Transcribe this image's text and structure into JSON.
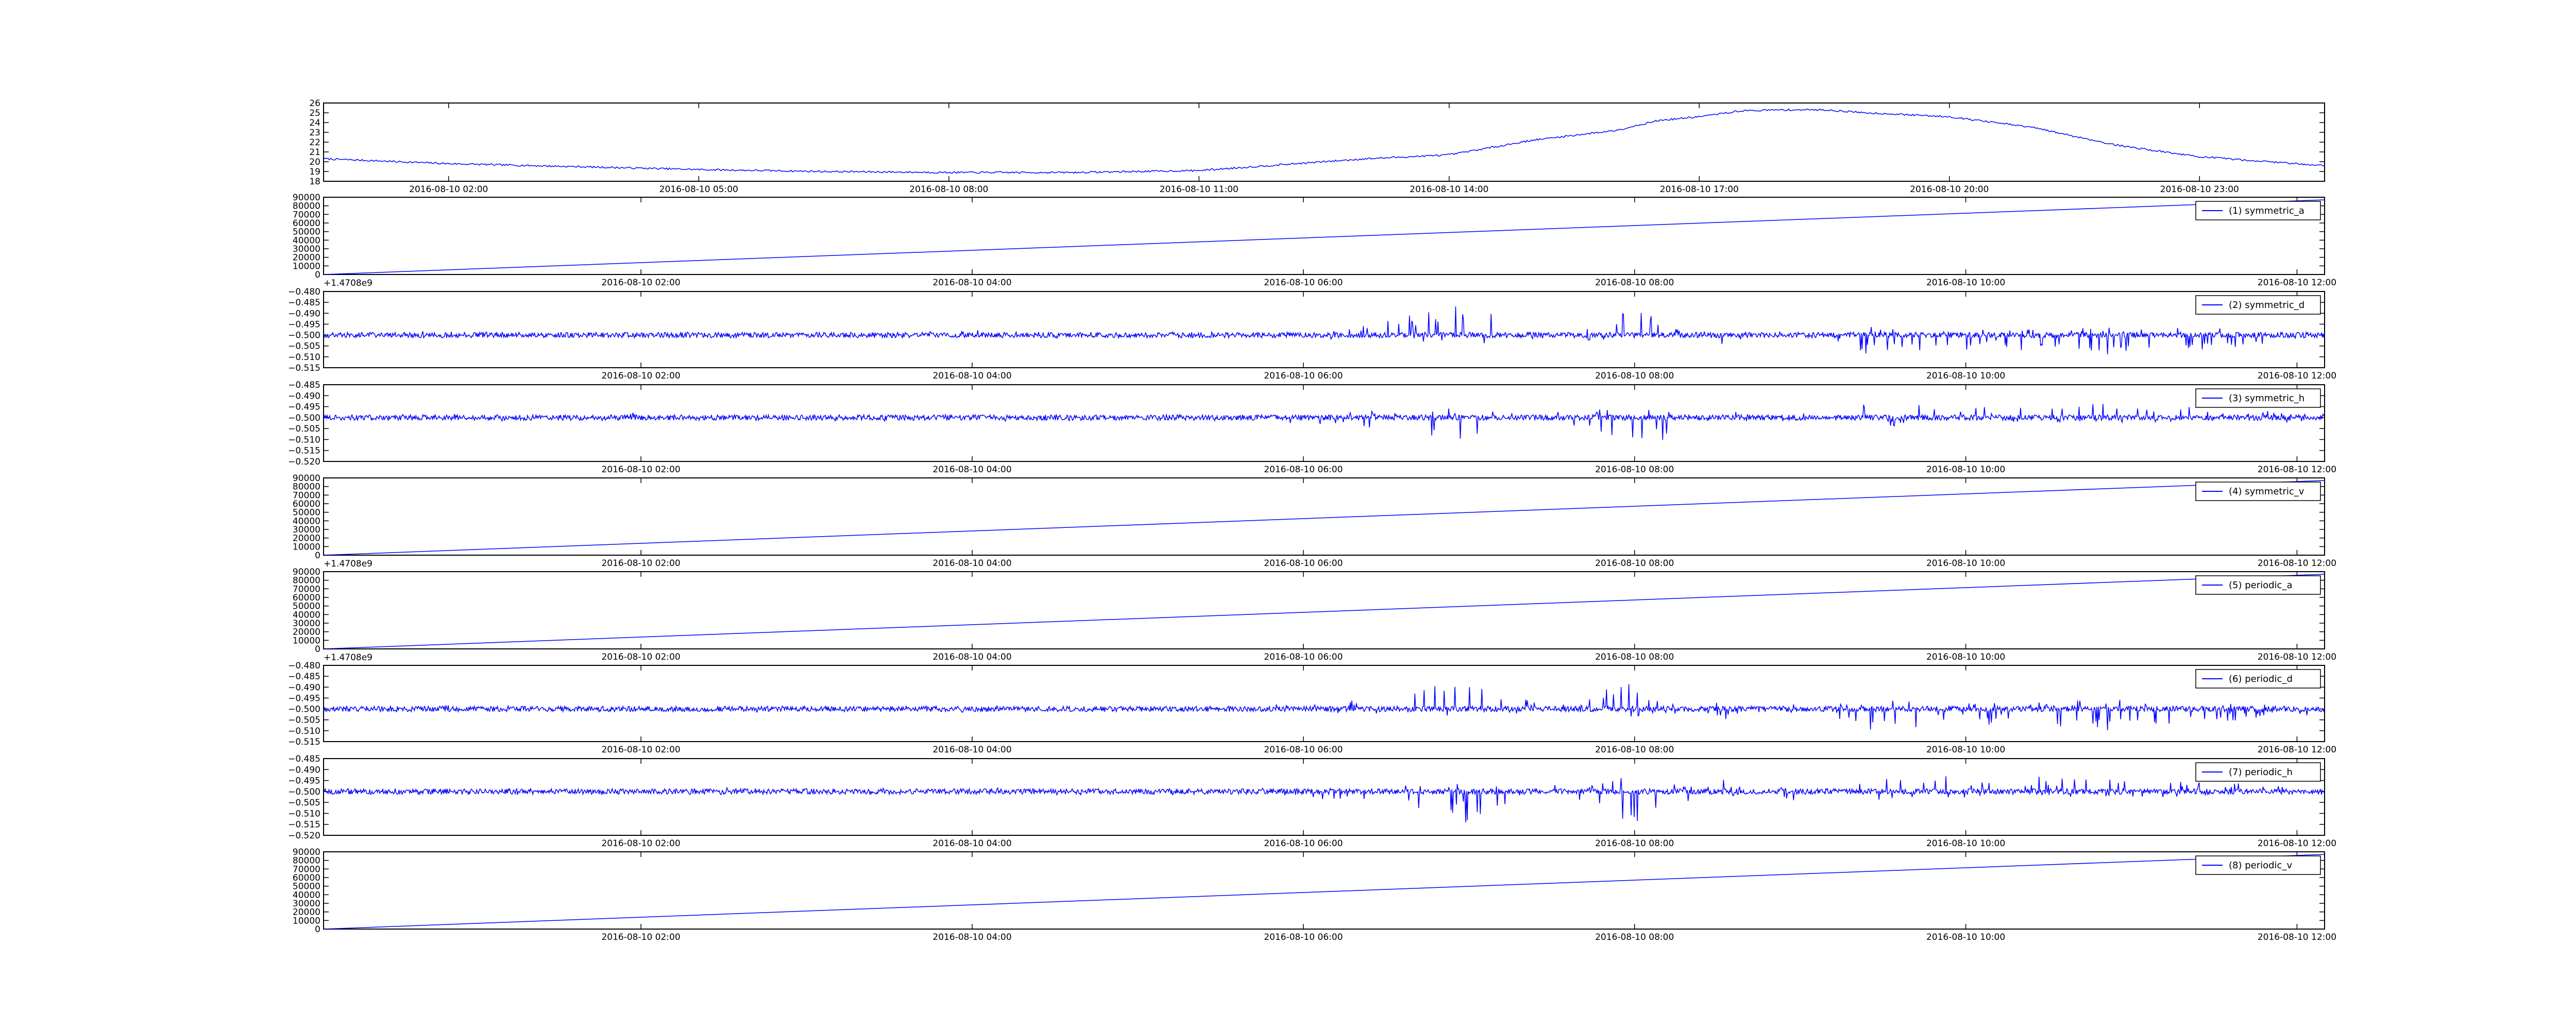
{
  "colors": {
    "line": "#0000ff",
    "axis": "#000000",
    "background": "#ffffff"
  },
  "chart_data": [
    {
      "type": "line",
      "title": "",
      "xlabel": "",
      "ylabel": "",
      "grid": false,
      "legend": null,
      "x_range": [
        "2016-08-10 00:30",
        "2016-08-11 00:30"
      ],
      "ylim": [
        18,
        26
      ],
      "y_ticks": [
        "18",
        "19",
        "20",
        "21",
        "22",
        "23",
        "24",
        "25",
        "26"
      ],
      "x_tick_labels": [
        "2016-08-10 02:00",
        "2016-08-10 05:00",
        "2016-08-10 08:00",
        "2016-08-10 11:00",
        "2016-08-10 14:00",
        "2016-08-10 17:00",
        "2016-08-10 20:00",
        "2016-08-10 23:00"
      ],
      "series": [
        {
          "x": [
            "2016-08-10 00:30",
            "2016-08-10 02:00",
            "2016-08-10 03:30",
            "2016-08-10 05:00",
            "2016-08-10 06:30",
            "2016-08-10 08:00",
            "2016-08-10 09:30",
            "2016-08-10 11:00",
            "2016-08-10 12:00",
            "2016-08-10 13:00",
            "2016-08-10 14:00",
            "2016-08-10 15:00",
            "2016-08-10 16:00",
            "2016-08-10 16:30",
            "2016-08-10 17:00",
            "2016-08-10 17:30",
            "2016-08-10 18:00",
            "2016-08-10 18:30",
            "2016-08-10 19:00",
            "2016-08-10 20:00",
            "2016-08-10 21:00",
            "2016-08-10 22:00",
            "2016-08-10 23:00",
            "2016-08-11 00:00",
            "2016-08-11 00:30"
          ],
          "values": [
            20.3,
            19.8,
            19.5,
            19.2,
            19.0,
            18.9,
            18.9,
            19.1,
            19.7,
            20.3,
            20.7,
            22.2,
            23.2,
            24.2,
            24.6,
            25.2,
            25.3,
            25.3,
            25.0,
            24.6,
            23.5,
            21.7,
            20.5,
            19.9,
            19.6
          ]
        }
      ]
    },
    {
      "type": "line",
      "ylim": [
        0,
        90000
      ],
      "y_ticks": [
        "0",
        "10000",
        "20000",
        "30000",
        "40000",
        "50000",
        "60000",
        "70000",
        "80000",
        "90000"
      ],
      "offset_label": "+1.4708e9",
      "x_range": [
        "2016-08-10 00:05",
        "2016-08-10 12:10"
      ],
      "x_tick_labels": [
        "2016-08-10 02:00",
        "2016-08-10 04:00",
        "2016-08-10 06:00",
        "2016-08-10 08:00",
        "2016-08-10 10:00",
        "2016-08-10 12:00"
      ],
      "legend": "top-right",
      "series": [
        {
          "name": "(1) symmetric_a",
          "x": [
            "2016-08-10 00:05",
            "2016-08-10 12:10"
          ],
          "values": [
            0,
            87000
          ]
        }
      ]
    },
    {
      "type": "line",
      "ylim": [
        -0.515,
        -0.48
      ],
      "y_ticks": [
        "−0.515",
        "−0.510",
        "−0.505",
        "−0.500",
        "−0.495",
        "−0.490",
        "−0.485",
        "−0.480"
      ],
      "x_range": [
        "2016-08-10 00:05",
        "2016-08-10 12:10"
      ],
      "x_tick_labels": [
        "2016-08-10 02:00",
        "2016-08-10 04:00",
        "2016-08-10 06:00",
        "2016-08-10 08:00",
        "2016-08-10 10:00",
        "2016-08-10 12:00"
      ],
      "legend": "top-right",
      "series": [
        {
          "name": "(2) symmetric_d",
          "x": [
            "2016-08-10 00:05",
            "2016-08-10 01:00",
            "2016-08-10 02:00",
            "2016-08-10 03:00",
            "2016-08-10 04:00",
            "2016-08-10 05:00",
            "2016-08-10 06:00",
            "2016-08-10 06:30",
            "2016-08-10 07:00",
            "2016-08-10 07:30",
            "2016-08-10 08:00",
            "2016-08-10 08:30",
            "2016-08-10 09:00",
            "2016-08-10 09:30",
            "2016-08-10 10:00",
            "2016-08-10 11:00",
            "2016-08-10 12:10"
          ],
          "values": [
            -0.5,
            -0.499,
            -0.501,
            -0.5,
            -0.499,
            -0.5,
            -0.499,
            -0.496,
            -0.489,
            -0.5,
            -0.49,
            -0.504,
            -0.498,
            -0.508,
            -0.505,
            -0.507,
            -0.501
          ]
        }
      ]
    },
    {
      "type": "line",
      "ylim": [
        -0.52,
        -0.485
      ],
      "y_ticks": [
        "−0.520",
        "−0.515",
        "−0.510",
        "−0.505",
        "−0.500",
        "−0.495",
        "−0.490",
        "−0.485"
      ],
      "x_range": [
        "2016-08-10 00:05",
        "2016-08-10 12:10"
      ],
      "x_tick_labels": [
        "2016-08-10 02:00",
        "2016-08-10 04:00",
        "2016-08-10 06:00",
        "2016-08-10 08:00",
        "2016-08-10 10:00",
        "2016-08-10 12:00"
      ],
      "legend": "top-right",
      "series": [
        {
          "name": "(3) symmetric_h",
          "x": [
            "2016-08-10 00:05",
            "2016-08-10 01:00",
            "2016-08-10 02:00",
            "2016-08-10 03:00",
            "2016-08-10 04:00",
            "2016-08-10 05:00",
            "2016-08-10 06:00",
            "2016-08-10 06:30",
            "2016-08-10 07:00",
            "2016-08-10 07:30",
            "2016-08-10 08:00",
            "2016-08-10 08:30",
            "2016-08-10 09:00",
            "2016-08-10 09:30",
            "2016-08-10 10:00",
            "2016-08-10 11:00",
            "2016-08-10 12:10"
          ],
          "values": [
            -0.5,
            -0.501,
            -0.499,
            -0.5,
            -0.501,
            -0.5,
            -0.501,
            -0.505,
            -0.51,
            -0.497,
            -0.516,
            -0.496,
            -0.504,
            -0.493,
            -0.496,
            -0.496,
            -0.499
          ]
        }
      ]
    },
    {
      "type": "line",
      "ylim": [
        0,
        90000
      ],
      "y_ticks": [
        "0",
        "10000",
        "20000",
        "30000",
        "40000",
        "50000",
        "60000",
        "70000",
        "80000",
        "90000"
      ],
      "offset_label": "+1.4708e9",
      "x_range": [
        "2016-08-10 00:05",
        "2016-08-10 12:10"
      ],
      "x_tick_labels": [
        "2016-08-10 02:00",
        "2016-08-10 04:00",
        "2016-08-10 06:00",
        "2016-08-10 08:00",
        "2016-08-10 10:00",
        "2016-08-10 12:00"
      ],
      "legend": "top-right",
      "series": [
        {
          "name": "(4) symmetric_v",
          "x": [
            "2016-08-10 00:05",
            "2016-08-10 12:10"
          ],
          "values": [
            0,
            87000
          ]
        }
      ]
    },
    {
      "type": "line",
      "ylim": [
        0,
        90000
      ],
      "y_ticks": [
        "0",
        "10000",
        "20000",
        "30000",
        "40000",
        "50000",
        "60000",
        "70000",
        "80000",
        "90000"
      ],
      "offset_label": "+1.4708e9",
      "x_range": [
        "2016-08-10 00:05",
        "2016-08-10 12:10"
      ],
      "x_tick_labels": [
        "2016-08-10 02:00",
        "2016-08-10 04:00",
        "2016-08-10 06:00",
        "2016-08-10 08:00",
        "2016-08-10 10:00",
        "2016-08-10 12:00"
      ],
      "legend": "top-right",
      "series": [
        {
          "name": "(5) periodic_a",
          "x": [
            "2016-08-10 00:05",
            "2016-08-10 12:10"
          ],
          "values": [
            0,
            87000
          ]
        }
      ]
    },
    {
      "type": "line",
      "ylim": [
        -0.515,
        -0.48
      ],
      "y_ticks": [
        "−0.515",
        "−0.510",
        "−0.505",
        "−0.500",
        "−0.495",
        "−0.490",
        "−0.485",
        "−0.480"
      ],
      "x_range": [
        "2016-08-10 00:05",
        "2016-08-10 12:10"
      ],
      "x_tick_labels": [
        "2016-08-10 02:00",
        "2016-08-10 04:00",
        "2016-08-10 06:00",
        "2016-08-10 08:00",
        "2016-08-10 10:00",
        "2016-08-10 12:00"
      ],
      "legend": "top-right",
      "series": [
        {
          "name": "(6) periodic_d",
          "x": [
            "2016-08-10 00:05",
            "2016-08-10 01:00",
            "2016-08-10 02:00",
            "2016-08-10 03:00",
            "2016-08-10 04:00",
            "2016-08-10 05:00",
            "2016-08-10 06:00",
            "2016-08-10 06:30",
            "2016-08-10 07:00",
            "2016-08-10 07:30",
            "2016-08-10 08:00",
            "2016-08-10 08:30",
            "2016-08-10 09:00",
            "2016-08-10 09:30",
            "2016-08-10 10:00",
            "2016-08-10 11:00",
            "2016-08-10 12:10"
          ],
          "values": [
            -0.5,
            -0.499,
            -0.501,
            -0.5,
            -0.499,
            -0.5,
            -0.499,
            -0.496,
            -0.489,
            -0.5,
            -0.49,
            -0.504,
            -0.498,
            -0.508,
            -0.505,
            -0.507,
            -0.501
          ]
        }
      ]
    },
    {
      "type": "line",
      "ylim": [
        -0.52,
        -0.485
      ],
      "y_ticks": [
        "−0.520",
        "−0.515",
        "−0.510",
        "−0.505",
        "−0.500",
        "−0.495",
        "−0.490",
        "−0.485"
      ],
      "x_range": [
        "2016-08-10 00:05",
        "2016-08-10 12:10"
      ],
      "x_tick_labels": [
        "2016-08-10 02:00",
        "2016-08-10 04:00",
        "2016-08-10 06:00",
        "2016-08-10 08:00",
        "2016-08-10 10:00",
        "2016-08-10 12:00"
      ],
      "legend": "top-right",
      "series": [
        {
          "name": "(7) periodic_h",
          "x": [
            "2016-08-10 00:05",
            "2016-08-10 01:00",
            "2016-08-10 02:00",
            "2016-08-10 03:00",
            "2016-08-10 04:00",
            "2016-08-10 05:00",
            "2016-08-10 06:00",
            "2016-08-10 06:30",
            "2016-08-10 07:00",
            "2016-08-10 07:30",
            "2016-08-10 08:00",
            "2016-08-10 08:30",
            "2016-08-10 09:00",
            "2016-08-10 09:30",
            "2016-08-10 10:00",
            "2016-08-10 11:00",
            "2016-08-10 12:10"
          ],
          "values": [
            -0.5,
            -0.501,
            -0.499,
            -0.5,
            -0.501,
            -0.5,
            -0.501,
            -0.505,
            -0.51,
            -0.497,
            -0.516,
            -0.496,
            -0.504,
            -0.493,
            -0.496,
            -0.496,
            -0.499
          ]
        }
      ]
    },
    {
      "type": "line",
      "ylim": [
        0,
        90000
      ],
      "y_ticks": [
        "0",
        "10000",
        "20000",
        "30000",
        "40000",
        "50000",
        "60000",
        "70000",
        "80000",
        "90000"
      ],
      "x_range": [
        "2016-08-10 00:05",
        "2016-08-10 12:10"
      ],
      "x_tick_labels": [
        "2016-08-10 02:00",
        "2016-08-10 04:00",
        "2016-08-10 06:00",
        "2016-08-10 08:00",
        "2016-08-10 10:00",
        "2016-08-10 12:00"
      ],
      "legend": "top-right",
      "series": [
        {
          "name": "(8) periodic_v",
          "x": [
            "2016-08-10 00:05",
            "2016-08-10 12:10"
          ],
          "values": [
            0,
            87000
          ]
        }
      ]
    }
  ]
}
